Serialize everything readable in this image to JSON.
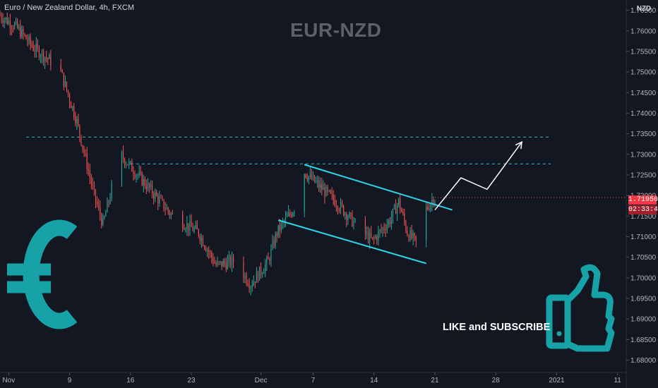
{
  "header": {
    "symbol_line": "Euro / New Zealand Dollar, 4h, FXCM",
    "watermark": "EUR-NZD"
  },
  "callout": {
    "text": "LIKE and SUBSCRIBE"
  },
  "price_axis": {
    "currency": "NZD",
    "last_price": "1.71950",
    "countdown": "02:33:47"
  },
  "colors": {
    "background": "#131722",
    "candle_up": "#26a69a",
    "candle_down": "#ef5350",
    "channel": "#2fd3e6",
    "level_line": "#2fb7c4",
    "arrow": "#ffffff",
    "icons": "#17a2a8",
    "last_price_badge": "#f23645"
  },
  "icons": [
    "euro-icon",
    "thumbs-up-icon"
  ],
  "chart_data": {
    "type": "candlestick",
    "timeframe": "4h",
    "ylim": [
      1.677,
      1.7675
    ],
    "y_ticks": [
      "1.76500",
      "1.76000",
      "1.75500",
      "1.75000",
      "1.74500",
      "1.74000",
      "1.73500",
      "1.73000",
      "1.72500",
      "1.72000",
      "1.71500",
      "1.71000",
      "1.70500",
      "1.70000",
      "1.69500",
      "1.69000",
      "1.68500",
      "1.68000"
    ],
    "x_ticks": [
      "Nov",
      "9",
      "16",
      "23",
      "Dec",
      "7",
      "14",
      "21",
      "28",
      "2021",
      "11"
    ],
    "x_domain": [
      "2020-11-01",
      "2021-01-12"
    ],
    "x_tick_dates": [
      "2020-11-02",
      "2020-11-09",
      "2020-11-16",
      "2020-11-23",
      "2020-12-01",
      "2020-12-07",
      "2020-12-14",
      "2020-12-21",
      "2020-12-28",
      "2021-01-04",
      "2021-01-11"
    ],
    "price_path": [
      [
        "2020-11-01",
        1.764
      ],
      [
        "2020-11-03",
        1.761
      ],
      [
        "2020-11-05",
        1.756
      ],
      [
        "2020-11-08",
        1.751
      ],
      [
        "2020-11-10",
        1.738
      ],
      [
        "2020-11-11",
        1.729
      ],
      [
        "2020-11-12",
        1.72
      ],
      [
        "2020-11-13",
        1.713
      ],
      [
        "2020-11-15",
        1.73
      ],
      [
        "2020-11-17",
        1.725
      ],
      [
        "2020-11-19",
        1.72
      ],
      [
        "2020-11-21",
        1.715
      ],
      [
        "2020-11-24",
        1.711
      ],
      [
        "2020-11-26",
        1.703
      ],
      [
        "2020-11-28",
        1.704
      ],
      [
        "2020-11-30",
        1.6985
      ],
      [
        "2020-12-02",
        1.704
      ],
      [
        "2020-12-03",
        1.711
      ],
      [
        "2020-12-05",
        1.717
      ],
      [
        "2020-12-06",
        1.726
      ],
      [
        "2020-12-08",
        1.722
      ],
      [
        "2020-12-10",
        1.718
      ],
      [
        "2020-12-12",
        1.713
      ],
      [
        "2020-12-14",
        1.709
      ],
      [
        "2020-12-16",
        1.714
      ],
      [
        "2020-12-17",
        1.7185
      ],
      [
        "2020-12-18",
        1.711
      ],
      [
        "2020-12-19",
        1.7085
      ],
      [
        "2020-12-20",
        1.716
      ],
      [
        "2020-12-21",
        1.7195
      ]
    ],
    "last_price": 1.7195,
    "annotations": {
      "horizontal_levels": [
        1.7342,
        1.7277
      ],
      "channel_upper": [
        [
          "2020-12-06",
          1.7275
        ],
        [
          "2020-12-23",
          1.7165
        ]
      ],
      "channel_lower": [
        [
          "2020-12-03",
          1.714
        ],
        [
          "2020-12-20",
          1.7035
        ]
      ],
      "projection_path": [
        [
          "2020-12-21",
          1.7165
        ],
        [
          "2020-12-24",
          1.7243
        ],
        [
          "2020-12-27",
          1.7215
        ],
        [
          "2020-12-31",
          1.733
        ]
      ]
    }
  }
}
